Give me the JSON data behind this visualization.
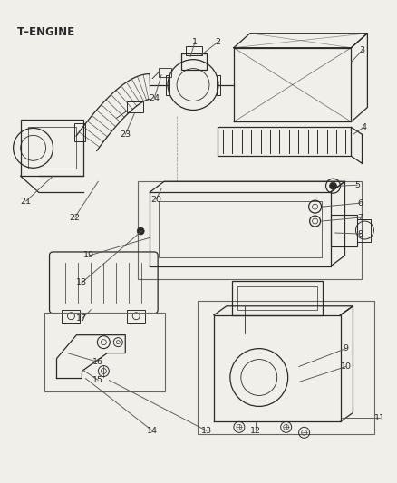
{
  "title": "T–ENGINE",
  "bg_color": "#f0efea",
  "line_color": "#2a2a2a",
  "label_color": "#2a2a2a",
  "figsize": [
    4.38,
    5.33
  ],
  "dpi": 100
}
